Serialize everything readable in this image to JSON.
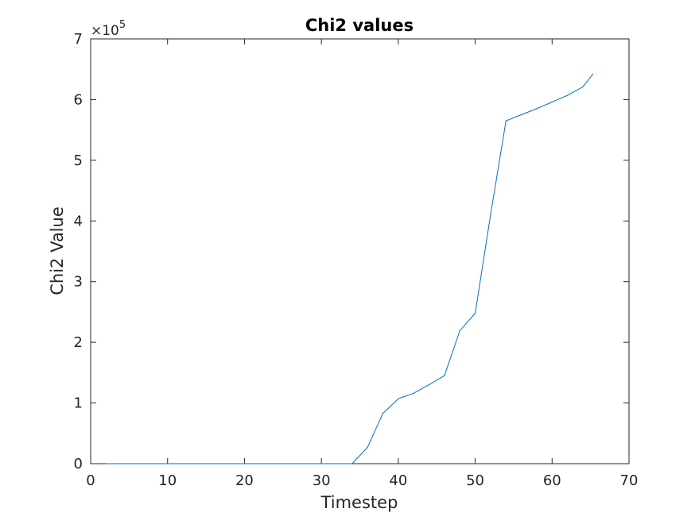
{
  "chart_data": {
    "type": "line",
    "title": "Chi2 values",
    "xlabel": "Timestep",
    "ylabel": "Chi2 Value",
    "xlim": [
      0,
      70
    ],
    "ylim": [
      0,
      700000
    ],
    "x_ticks": [
      0,
      10,
      20,
      30,
      40,
      50,
      60,
      70
    ],
    "y_ticks": [
      0,
      1,
      2,
      3,
      4,
      5,
      6,
      7
    ],
    "y_tick_multiplier": "×10",
    "y_tick_exponent": "5",
    "grid": false,
    "series": [
      {
        "name": "Chi2",
        "color": "#0072BD",
        "x": [
          2,
          10,
          20,
          30,
          34,
          36,
          38,
          40,
          42,
          44,
          46,
          48,
          50,
          52,
          54,
          56,
          58,
          60,
          62,
          64,
          65.3
        ],
        "y": [
          0,
          0,
          0,
          0,
          0,
          27000,
          83000,
          107000,
          116000,
          130000,
          145000,
          219000,
          248000,
          410000,
          565000,
          575000,
          585000,
          596000,
          607000,
          621000,
          642000
        ]
      }
    ]
  }
}
